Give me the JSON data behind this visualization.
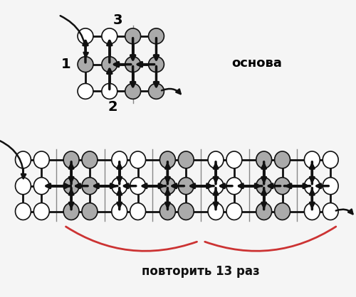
{
  "osnova_label": "основа",
  "label1": "1",
  "label2": "2",
  "label3": "3",
  "repeat_label": "повторить 13 раз",
  "bead_white": "#ffffff",
  "bead_gray": "#aaaaaa",
  "bead_edge": "#111111",
  "arrow_color": "#111111",
  "brace_color": "#cc3333",
  "line_color": "#888888",
  "background": "#f5f5f5"
}
